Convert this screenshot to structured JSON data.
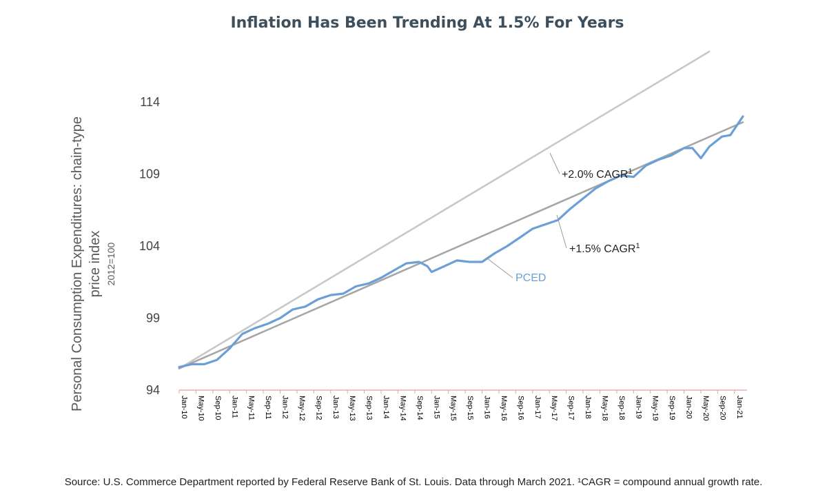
{
  "chart_data": {
    "type": "line",
    "title": "Inflation Has Been Trending At 1.5% For Years",
    "ylabel_line1": "Personal Consumption Expenditures: chain-type",
    "ylabel_line2": "price index",
    "ylabel_line3": "2012=100",
    "ylim": [
      94,
      118
    ],
    "yticks": [
      "94",
      "99",
      "104",
      "109",
      "114"
    ],
    "xticks": [
      "Jan-10",
      "May-10",
      "Sep-10",
      "Jan-11",
      "May-11",
      "Sep-11",
      "Jan-12",
      "May-12",
      "Sep-12",
      "Jan-13",
      "May-13",
      "Sep-13",
      "Jan-14",
      "May-14",
      "Sep-14",
      "Jan-15",
      "May-15",
      "Sep-15",
      "Jan-16",
      "May-16",
      "Sep-16",
      "Jan-17",
      "May-17",
      "Sep-17",
      "Jan-18",
      "May-18",
      "Sep-18",
      "Jan-19",
      "May-19",
      "Sep-19",
      "Jan-20",
      "May-20",
      "Sep-20",
      "Jan-21"
    ],
    "x_start": "Jan-10",
    "x_end": "Mar-21",
    "series": [
      {
        "name": "PCED",
        "color": "#6b9fd6",
        "points": [
          [
            "Jan-10",
            95.6
          ],
          [
            "Apr-10",
            95.8
          ],
          [
            "Jul-10",
            95.8
          ],
          [
            "Oct-10",
            96.1
          ],
          [
            "Jan-11",
            96.9
          ],
          [
            "Apr-11",
            97.9
          ],
          [
            "Jul-11",
            98.3
          ],
          [
            "Oct-11",
            98.6
          ],
          [
            "Jan-12",
            99.0
          ],
          [
            "Apr-12",
            99.6
          ],
          [
            "Jul-12",
            99.8
          ],
          [
            "Oct-12",
            100.3
          ],
          [
            "Jan-13",
            100.6
          ],
          [
            "Apr-13",
            100.7
          ],
          [
            "Jul-13",
            101.2
          ],
          [
            "Oct-13",
            101.4
          ],
          [
            "Jan-14",
            101.8
          ],
          [
            "Apr-14",
            102.3
          ],
          [
            "Jul-14",
            102.8
          ],
          [
            "Oct-14",
            102.9
          ],
          [
            "Dec-14",
            102.6
          ],
          [
            "Jan-15",
            102.2
          ],
          [
            "Apr-15",
            102.6
          ],
          [
            "Jul-15",
            103.0
          ],
          [
            "Oct-15",
            102.9
          ],
          [
            "Jan-16",
            102.9
          ],
          [
            "Apr-16",
            103.5
          ],
          [
            "Jul-16",
            104.0
          ],
          [
            "Oct-16",
            104.6
          ],
          [
            "Jan-17",
            105.2
          ],
          [
            "Apr-17",
            105.5
          ],
          [
            "Jul-17",
            105.8
          ],
          [
            "Oct-17",
            106.6
          ],
          [
            "Jan-18",
            107.3
          ],
          [
            "Apr-18",
            108.0
          ],
          [
            "Jul-18",
            108.5
          ],
          [
            "Oct-18",
            108.9
          ],
          [
            "Jan-19",
            108.8
          ],
          [
            "Apr-19",
            109.6
          ],
          [
            "Jul-19",
            110.0
          ],
          [
            "Oct-19",
            110.3
          ],
          [
            "Jan-20",
            110.8
          ],
          [
            "Mar-20",
            110.8
          ],
          [
            "May-20",
            110.1
          ],
          [
            "Jul-20",
            110.9
          ],
          [
            "Oct-20",
            111.6
          ],
          [
            "Dec-20",
            111.7
          ],
          [
            "Mar-21",
            113.0
          ]
        ]
      },
      {
        "name": "+1.5% CAGR",
        "color": "#a6a6a6",
        "points": [
          [
            "Jan-10",
            95.5
          ],
          [
            "Mar-21",
            112.6
          ]
        ]
      },
      {
        "name": "+2.0% CAGR",
        "color": "#c8c8c8",
        "points": [
          [
            "Jan-10",
            95.5
          ],
          [
            "Jul-20",
            117.5
          ]
        ]
      }
    ],
    "annotations": [
      {
        "text": "+2.0% CAGR",
        "superscript": "1"
      },
      {
        "text": "+1.5% CAGR",
        "superscript": "1"
      },
      {
        "text": "PCED"
      }
    ],
    "grid": false,
    "legend": "none"
  },
  "source_note": "Source: U.S. Commerce Department reported by Federal Reserve Bank of St. Louis. Data through March 2021. ¹CAGR = compound annual growth rate."
}
